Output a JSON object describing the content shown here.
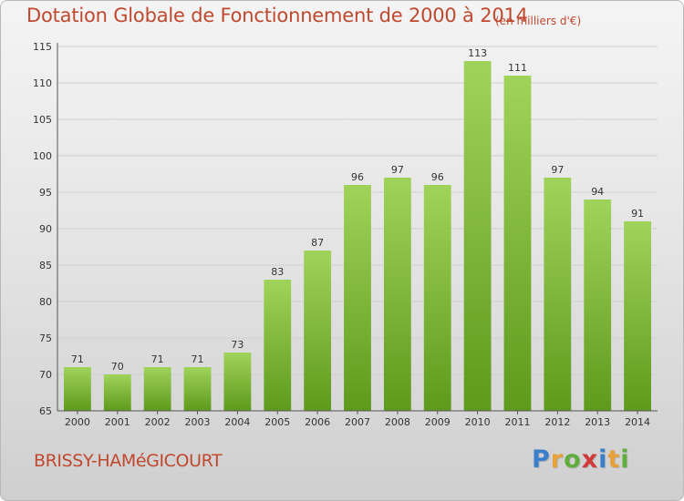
{
  "chart_data": {
    "type": "bar",
    "title": "Dotation Globale de Fonctionnement de 2000 à 2014",
    "subtitle": "(en milliers d'€)",
    "categories": [
      "2000",
      "2001",
      "2002",
      "2003",
      "2004",
      "2005",
      "2006",
      "2007",
      "2008",
      "2009",
      "2010",
      "2011",
      "2012",
      "2013",
      "2014"
    ],
    "values": [
      71,
      70,
      71,
      71,
      73,
      83,
      87,
      96,
      97,
      96,
      113,
      111,
      97,
      94,
      91
    ],
    "xlabel": "",
    "ylabel": "",
    "ylim": [
      65,
      115
    ],
    "yticks": [
      65,
      70,
      75,
      80,
      85,
      90,
      95,
      100,
      105,
      110,
      115
    ],
    "grid": true,
    "colors": {
      "bar_top": "#a0d35a",
      "bar_bottom": "#5e9a1c",
      "grid": "#cfcfcf"
    }
  },
  "footer": {
    "commune": "BRISSY-HAMéGICOURT",
    "logo_letters": [
      "P",
      "r",
      "o",
      "x",
      "i",
      "t",
      "i"
    ],
    "logo_colors": [
      "#3a7fc9",
      "#e8a13a",
      "#5fae3c",
      "#d23a3a",
      "#3a7fc9",
      "#e8a13a",
      "#5fae3c"
    ]
  }
}
